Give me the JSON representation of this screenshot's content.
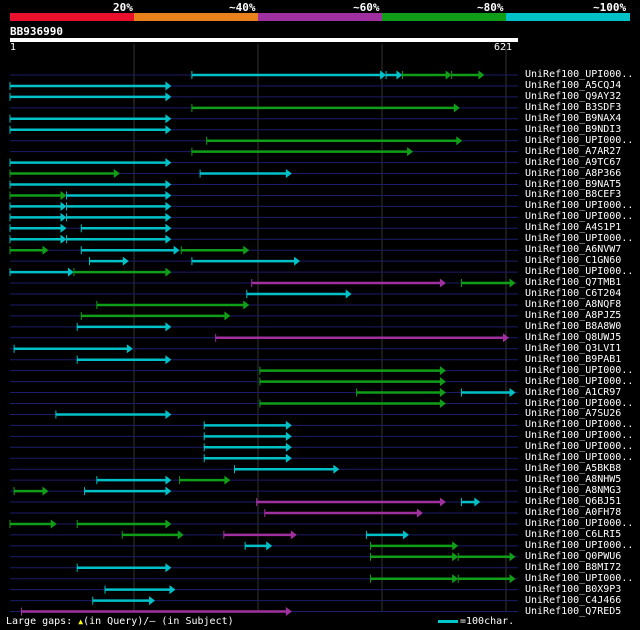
{
  "query": {
    "name": "BB936990",
    "start": "1",
    "end": "621",
    "length": 621
  },
  "scale": {
    "labels": [
      "20%",
      "~40%",
      "~60%",
      "~80%",
      "~100%"
    ],
    "colors": [
      "#e8102c",
      "#e8801c",
      "#a030a0",
      "#109e18",
      "#00c0c8"
    ]
  },
  "footer": {
    "gaps_label": "Large gaps:",
    "in_query": "(in Query)/",
    "dash": "–",
    "in_subject": "(in Subject)"
  },
  "legend": {
    "label": "=100char."
  },
  "chart_data": {
    "type": "alignment-map",
    "x_axis": {
      "min": 1,
      "max": 621,
      "unit": "query residue"
    },
    "identity_colors": {
      "~100%": "#00c0c8",
      "~80%": "#109e18",
      "~60%": "#a030a0"
    },
    "hits": [
      {
        "name": "UniRef100_UPI000..",
        "segs": [
          [
            223,
            460,
            "~100%"
          ],
          [
            460,
            480,
            "~100%"
          ],
          [
            480,
            540,
            "~80%"
          ],
          [
            540,
            580,
            "~80%"
          ]
        ]
      },
      {
        "name": "UniRef100_A5CQJ4",
        "segs": [
          [
            1,
            198,
            "~100%"
          ]
        ]
      },
      {
        "name": "UniRef100_Q9AY32",
        "segs": [
          [
            1,
            198,
            "~100%"
          ]
        ]
      },
      {
        "name": "UniRef100_B3SDF3",
        "segs": [
          [
            223,
            550,
            "~80%"
          ]
        ]
      },
      {
        "name": "UniRef100_B9NAX4",
        "segs": [
          [
            1,
            198,
            "~100%"
          ]
        ]
      },
      {
        "name": "UniRef100_B9NDI3",
        "segs": [
          [
            1,
            198,
            "~100%"
          ]
        ]
      },
      {
        "name": "UniRef100_UPI000..",
        "segs": [
          [
            241,
            553,
            "~80%"
          ]
        ]
      },
      {
        "name": "UniRef100_A7AR27",
        "segs": [
          [
            223,
            493,
            "~80%"
          ]
        ]
      },
      {
        "name": "UniRef100_A9TC67",
        "segs": [
          [
            1,
            198,
            "~100%"
          ]
        ]
      },
      {
        "name": "UniRef100_A8P366",
        "segs": [
          [
            1,
            135,
            "~80%"
          ],
          [
            233,
            345,
            "~100%"
          ]
        ]
      },
      {
        "name": "UniRef100_B9NAT5",
        "segs": [
          [
            1,
            198,
            "~100%"
          ]
        ]
      },
      {
        "name": "UniRef100_B8CEF3",
        "segs": [
          [
            1,
            70,
            "~80%"
          ],
          [
            70,
            198,
            "~100%"
          ]
        ]
      },
      {
        "name": "UniRef100_UPI000..",
        "segs": [
          [
            1,
            70,
            "~100%"
          ],
          [
            70,
            198,
            "~100%"
          ]
        ]
      },
      {
        "name": "UniRef100_UPI000..",
        "segs": [
          [
            1,
            70,
            "~100%"
          ],
          [
            70,
            198,
            "~100%"
          ]
        ]
      },
      {
        "name": "UniRef100_A4S1P1",
        "segs": [
          [
            1,
            70,
            "~100%"
          ],
          [
            88,
            198,
            "~100%"
          ]
        ]
      },
      {
        "name": "UniRef100_UPI000..",
        "segs": [
          [
            1,
            70,
            "~100%"
          ],
          [
            70,
            198,
            "~100%"
          ]
        ]
      },
      {
        "name": "UniRef100_A6NVW7",
        "segs": [
          [
            1,
            48,
            "~80%"
          ],
          [
            88,
            208,
            "~100%"
          ],
          [
            210,
            293,
            "~80%"
          ]
        ]
      },
      {
        "name": "UniRef100_C1GN60",
        "segs": [
          [
            98,
            146,
            "~100%"
          ],
          [
            223,
            355,
            "~100%"
          ]
        ]
      },
      {
        "name": "UniRef100_UPI000..",
        "segs": [
          [
            1,
            79,
            "~100%"
          ],
          [
            79,
            198,
            "~80%"
          ]
        ]
      },
      {
        "name": "UniRef100_Q7TMB1",
        "segs": [
          [
            296,
            533,
            "~60%"
          ],
          [
            552,
            618,
            "~80%"
          ]
        ]
      },
      {
        "name": "UniRef100_C6T204",
        "segs": [
          [
            290,
            418,
            "~100%"
          ]
        ]
      },
      {
        "name": "UniRef100_A8NQF8",
        "segs": [
          [
            107,
            293,
            "~80%"
          ]
        ]
      },
      {
        "name": "UniRef100_A8PJZ5",
        "segs": [
          [
            88,
            270,
            "~80%"
          ]
        ]
      },
      {
        "name": "UniRef100_B8A8W0",
        "segs": [
          [
            83,
            198,
            "~100%"
          ]
        ]
      },
      {
        "name": "UniRef100_Q8UWJ5",
        "segs": [
          [
            252,
            610,
            "~60%"
          ]
        ]
      },
      {
        "name": "UniRef100_Q3LVI1",
        "segs": [
          [
            6,
            151,
            "~100%"
          ]
        ]
      },
      {
        "name": "UniRef100_B9PAB1",
        "segs": [
          [
            83,
            198,
            "~100%"
          ]
        ]
      },
      {
        "name": "UniRef100_UPI000..",
        "segs": [
          [
            306,
            533,
            "~80%"
          ]
        ]
      },
      {
        "name": "UniRef100_UPI000..",
        "segs": [
          [
            306,
            533,
            "~80%"
          ]
        ]
      },
      {
        "name": "UniRef100_A1CR97",
        "segs": [
          [
            424,
            533,
            "~80%"
          ],
          [
            552,
            618,
            "~100%"
          ]
        ]
      },
      {
        "name": "UniRef100_UPI000..",
        "segs": [
          [
            306,
            533,
            "~80%"
          ]
        ]
      },
      {
        "name": "UniRef100_A7SU26",
        "segs": [
          [
            57,
            198,
            "~100%"
          ]
        ]
      },
      {
        "name": "UniRef100_UPI000..",
        "segs": [
          [
            238,
            345,
            "~100%"
          ]
        ]
      },
      {
        "name": "UniRef100_UPI000..",
        "segs": [
          [
            238,
            345,
            "~100%"
          ]
        ]
      },
      {
        "name": "UniRef100_UPI000..",
        "segs": [
          [
            238,
            345,
            "~100%"
          ]
        ]
      },
      {
        "name": "UniRef100_UPI000..",
        "segs": [
          [
            238,
            345,
            "~100%"
          ]
        ]
      },
      {
        "name": "UniRef100_A5BKB8",
        "segs": [
          [
            275,
            403,
            "~100%"
          ]
        ]
      },
      {
        "name": "UniRef100_A8NHW5",
        "segs": [
          [
            107,
            198,
            "~100%"
          ],
          [
            208,
            270,
            "~80%"
          ]
        ]
      },
      {
        "name": "UniRef100_A8NMG3",
        "segs": [
          [
            6,
            48,
            "~80%"
          ],
          [
            92,
            198,
            "~100%"
          ]
        ]
      },
      {
        "name": "UniRef100_Q6BJ51",
        "segs": [
          [
            302,
            533,
            "~60%"
          ],
          [
            552,
            575,
            "~100%"
          ]
        ]
      },
      {
        "name": "UniRef100_A0FH78",
        "segs": [
          [
            312,
            505,
            "~60%"
          ]
        ]
      },
      {
        "name": "UniRef100_UPI000..",
        "segs": [
          [
            1,
            58,
            "~80%"
          ],
          [
            83,
            198,
            "~80%"
          ]
        ]
      },
      {
        "name": "UniRef100_C6LRI5",
        "segs": [
          [
            138,
            213,
            "~80%"
          ],
          [
            262,
            351,
            "~60%"
          ],
          [
            436,
            488,
            "~100%"
          ]
        ]
      },
      {
        "name": "UniRef100_UPI000..",
        "segs": [
          [
            288,
            321,
            "~100%"
          ],
          [
            441,
            548,
            "~80%"
          ]
        ]
      },
      {
        "name": "UniRef100_Q0PWU6",
        "segs": [
          [
            441,
            548,
            "~80%"
          ],
          [
            548,
            618,
            "~80%"
          ]
        ]
      },
      {
        "name": "UniRef100_B8MI72",
        "segs": [
          [
            83,
            198,
            "~100%"
          ]
        ]
      },
      {
        "name": "UniRef100_UPI000..",
        "segs": [
          [
            441,
            548,
            "~80%"
          ],
          [
            548,
            618,
            "~80%"
          ]
        ]
      },
      {
        "name": "UniRef100_B0X9P3",
        "segs": [
          [
            117,
            203,
            "~100%"
          ]
        ]
      },
      {
        "name": "UniRef100_C4J466",
        "segs": [
          [
            102,
            178,
            "~100%"
          ]
        ]
      },
      {
        "name": "UniRef100_Q7RED5",
        "segs": [
          [
            15,
            345,
            "~60%"
          ]
        ]
      }
    ]
  }
}
